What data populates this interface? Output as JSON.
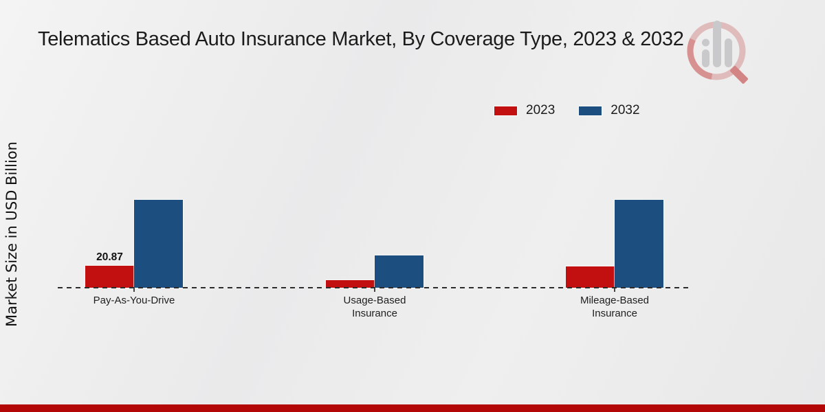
{
  "title": "Telematics Based Auto Insurance Market, By Coverage Type, 2023 & 2032",
  "y_axis_label": "Market Size in USD Billion",
  "legend": {
    "position": "top-right",
    "items": [
      {
        "label": "2023",
        "color": "#c21010"
      },
      {
        "label": "2032",
        "color": "#1d4e80"
      }
    ]
  },
  "chart_data": {
    "type": "bar",
    "title": "Telematics Based Auto Insurance Market, By Coverage Type, 2023 & 2032",
    "xlabel": "",
    "ylabel": "Market Size in USD Billion",
    "categories": [
      "Pay-As-You-Drive",
      "Usage-Based Insurance",
      "Mileage-Based Insurance"
    ],
    "series": [
      {
        "name": "2023",
        "color": "#c21010",
        "values": [
          20.87,
          7.0,
          20.5
        ]
      },
      {
        "name": "2032",
        "color": "#1d4e80",
        "values": [
          84.0,
          30.5,
          84.0
        ]
      }
    ],
    "value_labels": [
      {
        "series": "2023",
        "category": "Pay-As-You-Drive",
        "text": "20.87"
      }
    ],
    "grid": false,
    "baseline_style": "dashed",
    "legend_position": "top-right"
  },
  "colors": {
    "red_2023": "#c21010",
    "blue_2032": "#1d4e80",
    "footer_bar": "#b30606",
    "baseline": "#2b2b2b",
    "background": "#ececec"
  }
}
